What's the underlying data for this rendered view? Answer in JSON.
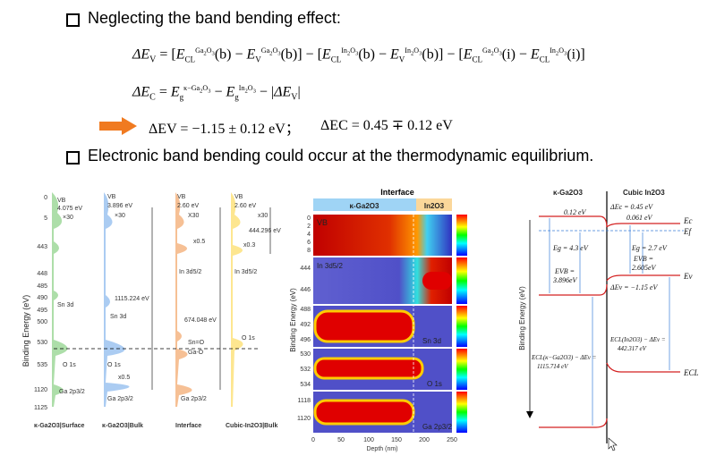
{
  "bullets": [
    {
      "text": "Neglecting the band bending effect:"
    },
    {
      "text": "Electronic band bending could occur at the thermodynamic equilibrium."
    }
  ],
  "equations": {
    "dEv_formula": "ΔEV = [ECL(Ga2O3)(b) − EV(Ga2O3)(b)] − [ECL(In2O3)(b) − EV(In2O3)(b)] − [ECL(Ga2O3)(i) − ECL(In2O3)(i)]",
    "dEc_formula": "ΔEC = Eg(κ−Ga2O3) − Eg(In2O3) − |ΔEV|",
    "result_v": "ΔEV = −1.15 ± 0.12 eV；",
    "result_c": "ΔEC = 0.45 ∓ 0.12 eV"
  },
  "panel_a": {
    "ylabel": "Binding Energy (eV)",
    "yticks": [
      "0",
      "5",
      "443",
      "448",
      "485",
      "490",
      "495",
      "500",
      "530",
      "535",
      "1120",
      "1125"
    ],
    "columns": [
      {
        "label": "κ-Ga2O3|Surface",
        "color": "#2e8b3d",
        "vb": "VB",
        "vb_val": "4.075 eV",
        "x30": "×30",
        "peaks": [
          "Sn 3d",
          "O 1s",
          "Ga 2p3/2"
        ]
      },
      {
        "label": "κ-Ga2O3|Bulk",
        "color": "#1f5fbf",
        "vb": "VB",
        "vb_val": "3.896 eV",
        "x30": "×30",
        "peaks": [
          "Sn 3d",
          "O 1s",
          "Ga 2p3/2"
        ],
        "gap": "1115.224 eV",
        "x05": "x0.5"
      },
      {
        "label": "Interface",
        "color": "#d2691e",
        "vb": "VB",
        "vb_val": "2.60 eV",
        "x30": "X30",
        "peaks": [
          "In 3d5/2",
          "Sn=O",
          "Ga-O",
          "Ga 2p3/2"
        ],
        "gap": "674.048 eV",
        "x05": "x0.5"
      },
      {
        "label": "Cubic-In2O3|Bulk",
        "color": "#c8a000",
        "vb": "VB",
        "vb_val": "2.60 eV",
        "x30": "x30",
        "peaks": [
          "In 3d5/2",
          "O 1s"
        ],
        "gap": "444.296 eV",
        "x05": "x0.3"
      }
    ]
  },
  "panel_b": {
    "title": "Interface",
    "left_header": "κ-Ga2O3",
    "right_header": "In2O3",
    "ylabel": "Binding Energy (eV)",
    "xlabel": "Depth (nm)",
    "xticks": [
      "0",
      "50",
      "100",
      "150",
      "200",
      "250"
    ],
    "strips": [
      {
        "label": "VB",
        "yticks": [
          "0",
          "2",
          "4",
          "6",
          "8"
        ]
      },
      {
        "label": "In 3d5/2",
        "yticks": [
          "444",
          "446"
        ]
      },
      {
        "label": "Sn 3d",
        "yticks": [
          "488",
          "492",
          "496"
        ]
      },
      {
        "label": "O 1s",
        "yticks": [
          "530",
          "532",
          "534"
        ]
      },
      {
        "label": "Ga 2p3/2",
        "yticks": [
          "1118",
          "1120"
        ]
      }
    ]
  },
  "panel_c": {
    "left_title": "κ-Ga2O3",
    "right_title": "Cubic In2O3",
    "ylabel": "Binding Energy (eV)",
    "dEc": "ΔEc = 0.45 eV",
    "v012": "0.12 eV",
    "v0061": "0.061 eV",
    "Ec": "Ec",
    "Ef": "Ef",
    "Eg_left": "Eg = 4.3 eV",
    "Eg_right": "Eg = 2.7 eV",
    "Evb_left_a": "EVB =",
    "Evb_left_b": "3.896eV",
    "Evb_right_a": "EVB =",
    "Evb_right_b": "2.605eV",
    "dEv": "ΔEv = −1.15 eV",
    "Ev": "Ev",
    "ecl_left_a": "ECL(κ−Ga2O3) − ΔEv =",
    "ecl_left_b": "1115.714 eV",
    "ecl_right_a": "ECL(In2O3) − ΔEv =",
    "ecl_right_b": "442.317 eV",
    "Ecl": "ECL"
  },
  "colors": {
    "arrow": "#f07a20",
    "red": "#d42020",
    "blue": "#3b7ed8"
  }
}
